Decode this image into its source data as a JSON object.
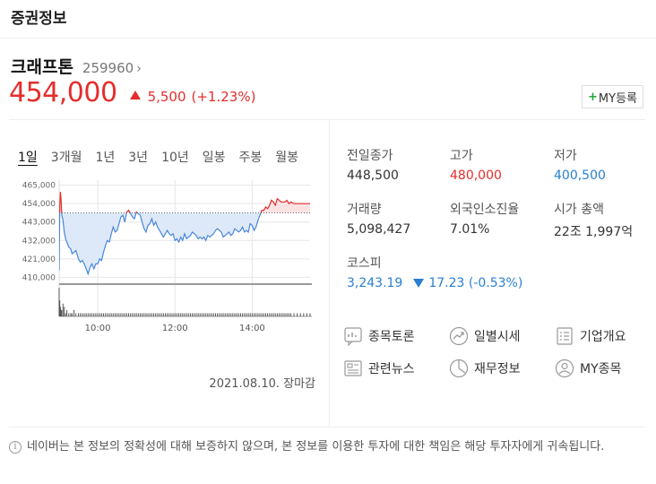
{
  "section": {
    "title": "증권정보"
  },
  "stock": {
    "name": "크래프톤",
    "code": "259960",
    "price": "454,000",
    "change": "5,500",
    "change_pct": "(+1.23%)",
    "my_button": "MY등록"
  },
  "tabs": [
    {
      "label": "1일",
      "active": true
    },
    {
      "label": "3개월"
    },
    {
      "label": "1년"
    },
    {
      "label": "3년"
    },
    {
      "label": "10년"
    },
    {
      "label": "일봉"
    },
    {
      "label": "주봉"
    },
    {
      "label": "월봉"
    }
  ],
  "chart_data": {
    "type": "line",
    "y_ticks": [
      "465,000",
      "454,000",
      "443,000",
      "432,000",
      "421,000",
      "410,000"
    ],
    "ylim": [
      407000,
      468000
    ],
    "x_ticks": [
      "10:00",
      "12:00",
      "14:00"
    ],
    "xlim": [
      540,
      930
    ],
    "prev_close": 448500,
    "x": [
      540,
      541,
      542,
      543,
      544,
      546,
      548,
      550,
      552,
      555,
      558,
      560,
      563,
      566,
      570,
      573,
      576,
      579,
      582,
      585,
      588,
      591,
      594,
      597,
      600,
      603,
      606,
      609,
      612,
      615,
      618,
      621,
      624,
      627,
      630,
      633,
      636,
      639,
      642,
      645,
      648,
      651,
      654,
      657,
      660,
      663,
      666,
      669,
      672,
      675,
      678,
      681,
      684,
      687,
      690,
      693,
      696,
      699,
      702,
      705,
      708,
      711,
      714,
      717,
      720,
      723,
      726,
      729,
      732,
      735,
      738,
      741,
      744,
      747,
      750,
      753,
      756,
      759,
      762,
      765,
      768,
      771,
      774,
      777,
      780,
      783,
      786,
      789,
      792,
      795,
      798,
      801,
      804,
      807,
      810,
      813,
      816,
      819,
      822,
      825,
      828,
      831,
      834,
      837,
      840,
      843,
      846,
      849,
      852,
      855,
      858,
      861,
      864,
      867,
      870,
      873,
      876,
      879,
      882,
      885,
      888,
      891,
      894,
      897,
      900,
      905,
      910,
      915,
      920,
      925,
      930
    ],
    "y": [
      414000,
      452000,
      461000,
      456000,
      447000,
      444000,
      437000,
      433000,
      431000,
      428000,
      427000,
      424000,
      425000,
      426000,
      421000,
      419000,
      420000,
      418000,
      415000,
      412000,
      416000,
      418000,
      415000,
      418000,
      418000,
      421000,
      420000,
      425000,
      429000,
      432000,
      431000,
      436000,
      440000,
      437000,
      438000,
      442000,
      446000,
      447000,
      443000,
      449000,
      450000,
      448000,
      446000,
      445000,
      449000,
      448000,
      447000,
      443000,
      439000,
      437000,
      441000,
      442000,
      445000,
      441000,
      443000,
      440000,
      438000,
      436000,
      434000,
      436000,
      438000,
      436000,
      435000,
      436000,
      432000,
      433000,
      431000,
      434000,
      432000,
      436000,
      433000,
      434000,
      435000,
      437000,
      436000,
      435000,
      433000,
      434000,
      433000,
      434000,
      432000,
      435000,
      434000,
      435000,
      436000,
      438000,
      439000,
      438000,
      437000,
      434000,
      435000,
      436000,
      437000,
      435000,
      436000,
      439000,
      438000,
      437000,
      438000,
      440000,
      437000,
      438000,
      437000,
      442000,
      441000,
      438000,
      440000,
      444000,
      447000,
      450000,
      450000,
      452000,
      451000,
      453000,
      456000,
      455000,
      453000,
      457000,
      456000,
      455000,
      455000,
      455000,
      456000,
      454000,
      455000,
      454000,
      454000,
      454000,
      454000,
      454000,
      454000
    ],
    "volume": [
      9,
      5,
      3,
      2,
      2,
      4,
      3,
      1,
      2,
      1,
      1,
      1,
      2,
      1,
      1,
      1,
      1,
      1,
      1,
      1,
      1,
      1,
      1,
      1,
      1,
      1,
      1,
      1,
      1,
      1,
      1,
      1,
      1,
      1,
      1,
      1,
      1,
      1,
      1,
      1,
      1,
      1,
      1,
      1,
      1,
      1,
      1,
      1,
      1,
      1,
      1,
      1,
      1,
      1,
      1,
      1,
      1,
      1,
      1,
      1,
      1,
      1,
      1,
      1,
      1,
      1,
      1,
      1,
      1,
      1,
      1,
      1,
      1,
      1,
      1,
      1,
      1,
      1,
      1,
      1,
      1,
      1,
      1,
      1,
      1,
      1,
      1,
      1,
      1,
      1,
      1,
      1,
      1,
      1,
      1,
      1,
      1,
      1,
      1,
      1,
      1,
      1,
      1,
      1,
      1,
      1,
      1,
      1,
      1,
      1,
      1,
      1,
      1,
      1,
      1,
      1,
      1,
      1,
      1,
      1,
      1,
      1,
      1,
      1,
      1,
      1,
      1,
      1,
      1,
      1,
      1
    ]
  },
  "date_close": "2021.08.10. 장마감",
  "stats": {
    "prev_close": {
      "label": "전일종가",
      "value": "448,500"
    },
    "high": {
      "label": "고가",
      "value": "480,000"
    },
    "low": {
      "label": "저가",
      "value": "400,500"
    },
    "volume": {
      "label": "거래량",
      "value": "5,098,427"
    },
    "foreign_rate": {
      "label": "외국인소진율",
      "value": "7.01%"
    },
    "market_cap": {
      "label": "시가 총액",
      "value": "22조 1,997억"
    },
    "kospi": {
      "label": "코스피",
      "value": "3,243.19",
      "change": "17.23 (-0.53%)"
    }
  },
  "links": {
    "discussion": "종목토론",
    "daily": "일별시세",
    "company": "기업개요",
    "news": "관련뉴스",
    "finance": "재무정보",
    "my_stock": "MY종목"
  },
  "notice": "네이버는 본 정보의 정확성에 대해 보증하지 않으며, 본 정보를 이용한 투자에 대한 책임은 해당 투자자에게 귀속됩니다.",
  "colors": {
    "up": "#e52d2d",
    "down": "#2a7fd0",
    "line": "#4a86d9",
    "fill": "#dde9f8"
  }
}
